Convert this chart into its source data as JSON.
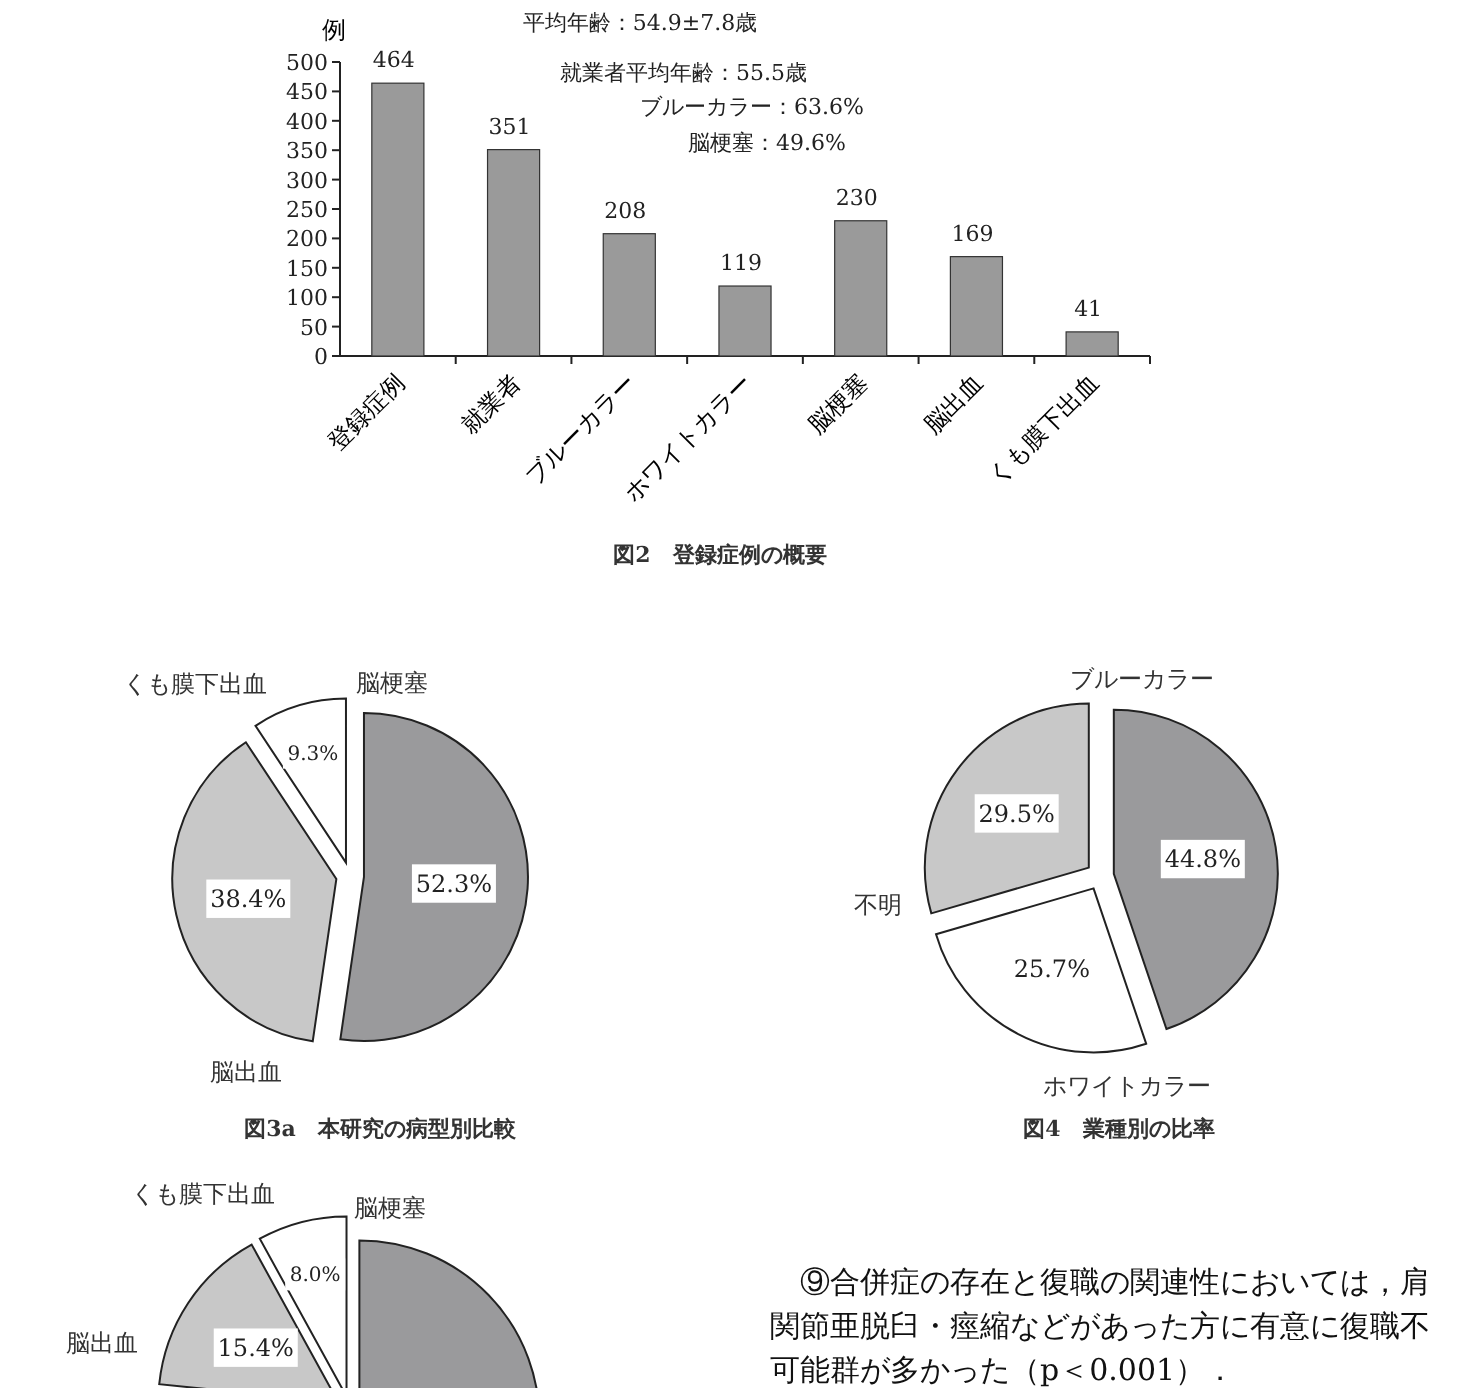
{
  "chart_data": [
    {
      "type": "bar",
      "title": "図2　登録症例の概要",
      "ylabel": "例",
      "categories": [
        "登録症例",
        "就業者",
        "ブルーカラー",
        "ホワイトカラー",
        "脳梗塞",
        "脳出血",
        "くも膜下出血"
      ],
      "values": [
        464,
        351,
        208,
        119,
        230,
        169,
        41
      ],
      "color": "#9a9a9a",
      "ylim": [
        0,
        500
      ],
      "yticks": [
        0,
        50,
        100,
        150,
        200,
        250,
        300,
        350,
        400,
        450,
        500
      ],
      "data_labels": true,
      "annotations": [
        "平均年齢：54.9±7.8歳",
        "就業者平均年齢：55.5歳",
        "ブルーカラー：63.6%",
        "脳梗塞：49.6%"
      ]
    },
    {
      "type": "pie",
      "title": "図3a　本研究の病型別比較",
      "categories": [
        "脳梗塞",
        "脳出血",
        "くも膜下出血"
      ],
      "values": [
        52.3,
        38.4,
        9.3
      ],
      "colors": [
        "#9a9a9c",
        "#c8c8c8",
        "#ffffff"
      ],
      "value_labels": [
        "52.3%",
        "38.4%",
        "9.3%"
      ]
    },
    {
      "type": "pie",
      "title": "図4　業種別の比率",
      "categories": [
        "ブルーカラー",
        "ホワイトカラー",
        "不明"
      ],
      "values": [
        44.8,
        25.7,
        29.5
      ],
      "colors": [
        "#9a9a9c",
        "#ffffff",
        "#c8c8c8"
      ],
      "value_labels": [
        "44.8%",
        "25.7%",
        "29.5%"
      ]
    },
    {
      "type": "pie",
      "categories": [
        "脳梗塞",
        "脳出血",
        "くも膜下出血"
      ],
      "values": [
        76.6,
        15.4,
        8.0
      ],
      "colors": [
        "#9a9a9c",
        "#c8c8c8",
        "#ffffff"
      ],
      "value_labels": [
        null,
        "15.4%",
        "8.0%"
      ]
    },
    {
      "type": "other",
      "annotations": [
        "⑨合併症の存在と復職の関連性においては，肩関節亜脱臼・痙縮などがあった方に有意に復職不可能群が多かった（p＜0.001）．"
      ]
    }
  ]
}
